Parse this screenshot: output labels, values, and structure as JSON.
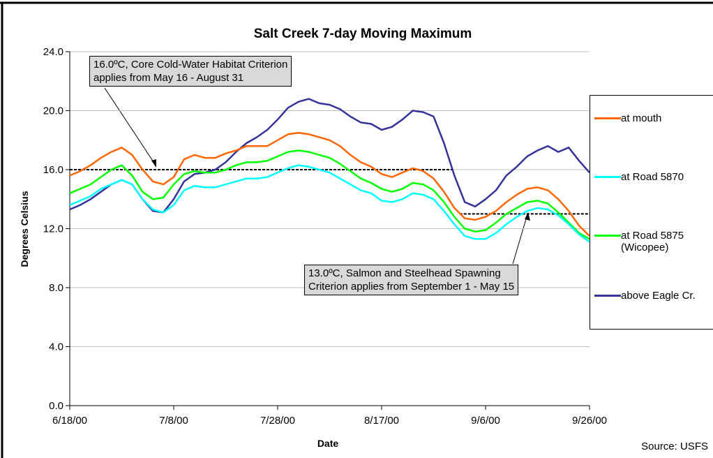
{
  "chart_data": {
    "type": "line",
    "title": "Salt Creek 7-day Moving Maximum",
    "xlabel": "Date",
    "ylabel": "Degrees Celsius",
    "source": "Source: USFS",
    "x": [
      "2000-06-18",
      "2000-06-20",
      "2000-06-22",
      "2000-06-24",
      "2000-06-26",
      "2000-06-28",
      "2000-06-30",
      "2000-07-02",
      "2000-07-04",
      "2000-07-06",
      "2000-07-08",
      "2000-07-10",
      "2000-07-12",
      "2000-07-14",
      "2000-07-16",
      "2000-07-18",
      "2000-07-20",
      "2000-07-22",
      "2000-07-24",
      "2000-07-26",
      "2000-07-28",
      "2000-07-30",
      "2000-08-01",
      "2000-08-03",
      "2000-08-05",
      "2000-08-07",
      "2000-08-09",
      "2000-08-11",
      "2000-08-13",
      "2000-08-15",
      "2000-08-17",
      "2000-08-19",
      "2000-08-21",
      "2000-08-23",
      "2000-08-25",
      "2000-08-27",
      "2000-08-29",
      "2000-08-31",
      "2000-09-02",
      "2000-09-04",
      "2000-09-06",
      "2000-09-08",
      "2000-09-10",
      "2000-09-12",
      "2000-09-14",
      "2000-09-16",
      "2000-09-18",
      "2000-09-20",
      "2000-09-22",
      "2000-09-24",
      "2000-09-26"
    ],
    "series": [
      {
        "name": "at mouth",
        "color": "#ff6600",
        "values": [
          15.6,
          15.9,
          16.3,
          16.8,
          17.2,
          17.5,
          17.0,
          16.0,
          15.2,
          15.0,
          15.5,
          16.7,
          17.0,
          16.8,
          16.8,
          17.1,
          17.3,
          17.6,
          17.6,
          17.6,
          18.0,
          18.4,
          18.5,
          18.4,
          18.2,
          18.0,
          17.6,
          17.0,
          16.5,
          16.2,
          15.7,
          15.5,
          15.8,
          16.1,
          15.9,
          15.4,
          14.5,
          13.4,
          12.7,
          12.6,
          12.8,
          13.2,
          13.8,
          14.3,
          14.7,
          14.8,
          14.6,
          14.0,
          13.2,
          12.2,
          11.5
        ]
      },
      {
        "name": "at Road 5870",
        "color": "#00ffff",
        "values": [
          13.6,
          13.9,
          14.2,
          14.7,
          15.0,
          15.3,
          15.0,
          14.0,
          13.3,
          13.1,
          13.6,
          14.6,
          14.9,
          14.8,
          14.8,
          15.0,
          15.2,
          15.4,
          15.4,
          15.5,
          15.8,
          16.1,
          16.3,
          16.2,
          16.0,
          15.8,
          15.4,
          15.0,
          14.6,
          14.4,
          13.9,
          13.8,
          14.0,
          14.4,
          14.3,
          14.0,
          13.2,
          12.3,
          11.5,
          11.3,
          11.3,
          11.7,
          12.3,
          12.8,
          13.2,
          13.4,
          13.3,
          12.9,
          12.3,
          11.6,
          11.1
        ]
      },
      {
        "name": "at Road 5875 (Wicopee)",
        "color": "#00ff00",
        "values": [
          14.4,
          14.7,
          15.0,
          15.5,
          16.0,
          16.3,
          15.6,
          14.5,
          14.0,
          14.1,
          15.0,
          15.7,
          15.9,
          15.8,
          15.8,
          16.0,
          16.3,
          16.5,
          16.5,
          16.6,
          16.9,
          17.2,
          17.3,
          17.2,
          17.0,
          16.8,
          16.4,
          15.9,
          15.4,
          15.1,
          14.7,
          14.5,
          14.7,
          15.1,
          15.0,
          14.6,
          13.8,
          12.8,
          12.0,
          11.8,
          11.9,
          12.4,
          13.0,
          13.4,
          13.8,
          13.9,
          13.7,
          13.1,
          12.4,
          11.7,
          11.3
        ]
      },
      {
        "name": "above Eagle Cr.",
        "color": "#333399",
        "values": [
          13.3,
          13.6,
          14.0,
          14.5,
          15.0,
          15.3,
          15.0,
          14.0,
          13.2,
          13.1,
          14.0,
          15.2,
          15.7,
          15.8,
          16.0,
          16.5,
          17.2,
          17.8,
          18.2,
          18.7,
          19.4,
          20.2,
          20.6,
          20.8,
          20.5,
          20.4,
          20.1,
          19.6,
          19.2,
          19.1,
          18.7,
          18.9,
          19.4,
          20.0,
          19.9,
          19.6,
          17.8,
          15.6,
          13.8,
          13.5,
          14.0,
          14.6,
          15.6,
          16.2,
          16.9,
          17.3,
          17.6,
          17.2,
          17.5,
          16.6,
          15.8
        ]
      }
    ],
    "xlim": [
      "2000-06-18",
      "2000-09-26"
    ],
    "xticks": [
      {
        "value": "2000-06-18",
        "label": "6/18/00"
      },
      {
        "value": "2000-07-08",
        "label": "7/8/00"
      },
      {
        "value": "2000-07-28",
        "label": "7/28/00"
      },
      {
        "value": "2000-08-17",
        "label": "8/17/00"
      },
      {
        "value": "2000-09-06",
        "label": "9/6/00"
      },
      {
        "value": "2000-09-26",
        "label": "9/26/00"
      }
    ],
    "ylim": [
      0,
      24
    ],
    "yticks": [
      {
        "value": 0,
        "label": "0.0"
      },
      {
        "value": 4,
        "label": "4.0"
      },
      {
        "value": 8,
        "label": "8.0"
      },
      {
        "value": 12,
        "label": "12.0"
      },
      {
        "value": 16,
        "label": "16.0"
      },
      {
        "value": 20,
        "label": "20.0"
      },
      {
        "value": 24,
        "label": "24.0"
      }
    ],
    "grid": true,
    "reference_lines": [
      {
        "value": 16,
        "x": [
          "2000-06-18",
          "2000-08-31"
        ]
      },
      {
        "value": 13,
        "x": [
          "2000-09-01",
          "2000-09-26"
        ]
      }
    ],
    "annotations": [
      {
        "lines": [
          "16.0ºC, Core Cold-Water Habitat Criterion",
          "applies from May 16 - August 31"
        ]
      },
      {
        "lines": [
          "13.0ºC, Salmon and Steelhead Spawning",
          "Criterion applies from September 1 - May 15"
        ]
      }
    ]
  }
}
